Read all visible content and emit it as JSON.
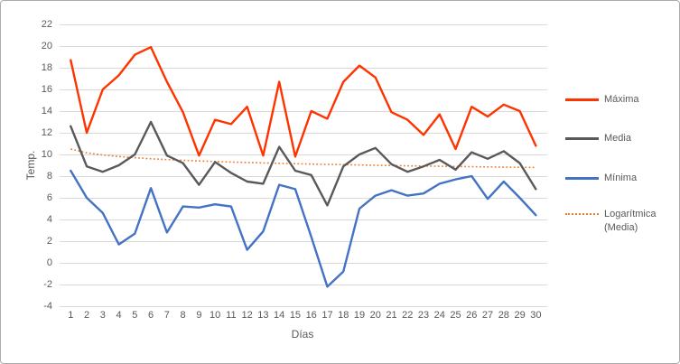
{
  "frame": {
    "background": "#FFFFFF",
    "border_color": "#ABABAB",
    "grid_color": "#D9D9D9",
    "tick_color": "#595959"
  },
  "chart_data": {
    "type": "line",
    "title": "",
    "xlabel": "Días",
    "ylabel": "Temp.",
    "x": [
      1,
      2,
      3,
      4,
      5,
      6,
      7,
      8,
      9,
      10,
      11,
      12,
      13,
      14,
      15,
      16,
      17,
      18,
      19,
      20,
      21,
      22,
      23,
      24,
      25,
      26,
      27,
      28,
      29,
      30
    ],
    "y_ticks": [
      22,
      20,
      18,
      16,
      14,
      12,
      10,
      8,
      6,
      4,
      2,
      0,
      -2,
      -4
    ],
    "ylim": [
      -4,
      22
    ],
    "grid": true,
    "legend_position": "right",
    "series": [
      {
        "key": "maxima",
        "name": "Máxima",
        "color": "#FF3300",
        "style": "solid",
        "is_trendline": false,
        "values": [
          18.7,
          12,
          16,
          17.3,
          19.2,
          19.9,
          16.7,
          13.9,
          9.9,
          13.2,
          12.8,
          14.4,
          9.9,
          16.7,
          9.8,
          14,
          13.3,
          16.7,
          18.2,
          17.1,
          13.9,
          13.2,
          11.8,
          13.7,
          10.5,
          14.4,
          13.5,
          14.6,
          14,
          10.8
        ]
      },
      {
        "key": "media",
        "name": "Media",
        "color": "#595959",
        "style": "solid",
        "is_trendline": false,
        "values": [
          12.6,
          8.9,
          8.4,
          9,
          10,
          13,
          9.9,
          9.2,
          7.2,
          9.3,
          8.3,
          7.5,
          7.3,
          10.7,
          8.5,
          8.1,
          5.3,
          8.9,
          10,
          10.6,
          9.1,
          8.4,
          8.9,
          9.5,
          8.6,
          10.2,
          9.6,
          10.3,
          9.2,
          6.8
        ]
      },
      {
        "key": "minima",
        "name": "Mínima",
        "color": "#4472C4",
        "style": "solid",
        "is_trendline": false,
        "values": [
          8.5,
          6,
          4.6,
          1.7,
          2.7,
          6.9,
          2.8,
          5.2,
          5.1,
          5.4,
          5.2,
          1.2,
          2.9,
          7.2,
          6.8,
          2.4,
          -2.2,
          -0.8,
          5,
          6.2,
          6.7,
          6.2,
          6.4,
          7.3,
          7.7,
          8,
          5.9,
          7.5,
          6,
          4.4
        ]
      },
      {
        "key": "log-media",
        "name": "Logarítmica (Media)",
        "color": "#ED7D31",
        "style": "dotted",
        "is_trendline": true,
        "values": [
          10.5,
          10.15,
          9.95,
          9.81,
          9.7,
          9.6,
          9.53,
          9.46,
          9.4,
          9.35,
          9.3,
          9.26,
          9.22,
          9.18,
          9.15,
          9.11,
          9.08,
          9.06,
          9.03,
          9,
          8.98,
          8.95,
          8.93,
          8.91,
          8.89,
          8.87,
          8.85,
          8.83,
          8.82,
          8.8
        ]
      }
    ]
  }
}
